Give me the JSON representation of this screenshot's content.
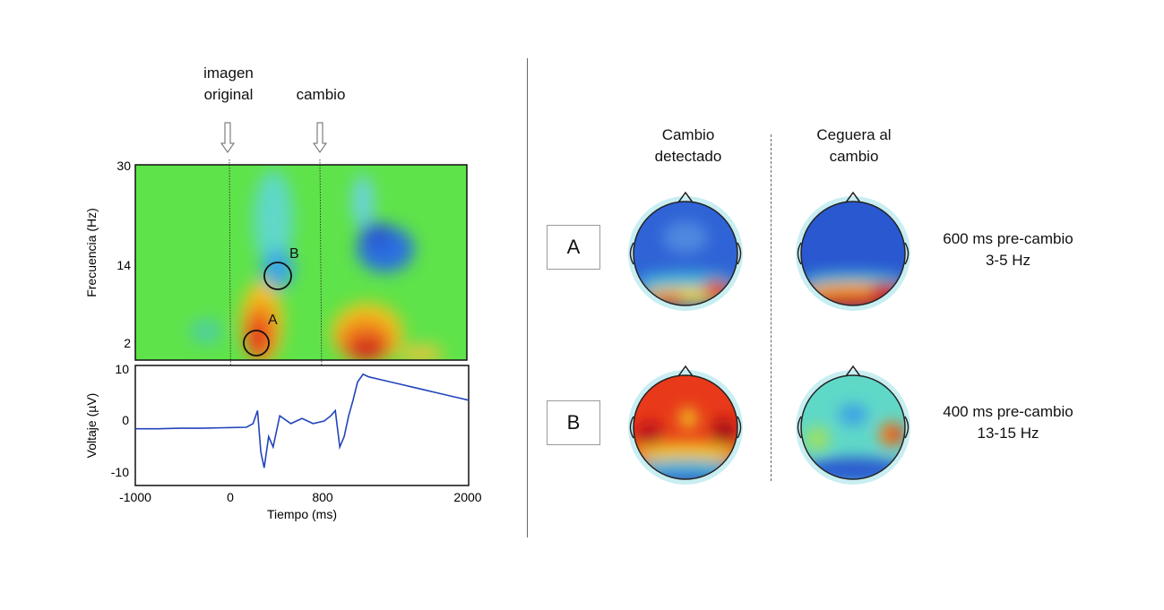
{
  "annotations": {
    "original_image": [
      "imagen",
      "original"
    ],
    "change": "cambio"
  },
  "spectrogram": {
    "ylabel": "Frecuencia (Hz)",
    "yticks": [
      "30",
      "14",
      "2"
    ],
    "markers": [
      "A",
      "B"
    ]
  },
  "erp": {
    "ylabel": "Voltaje (µV)",
    "yticks": [
      "10",
      "0",
      "-10"
    ]
  },
  "time_axis": {
    "xlabel": "Tiempo (ms)",
    "xticks": [
      "-1000",
      "0",
      "800",
      "2000"
    ]
  },
  "topo": {
    "columns": [
      [
        "Cambio",
        "detectado"
      ],
      [
        "Ceguera al",
        "cambio"
      ]
    ],
    "rows": [
      {
        "label": "A",
        "desc": [
          "600 ms pre-cambio",
          "3-5 Hz"
        ]
      },
      {
        "label": "B",
        "desc": [
          "400 ms pre-cambio",
          "13-15 Hz"
        ]
      }
    ]
  },
  "chart_data": {
    "type": "line",
    "x": [
      -1000,
      -800,
      -600,
      -400,
      -200,
      0,
      60,
      100,
      130,
      160,
      200,
      240,
      300,
      400,
      500,
      600,
      700,
      760,
      800,
      840,
      880,
      920,
      960,
      1000,
      1050,
      1100,
      1200,
      1300,
      1400,
      1500,
      1600,
      1700,
      1800,
      1900,
      2000
    ],
    "series": [
      {
        "values": [
          -1.5,
          -1.5,
          -1.4,
          -1.4,
          -1.3,
          -1.2,
          -0.5,
          2.0,
          -6.0,
          -9.0,
          -3.0,
          -5.0,
          1.0,
          -0.5,
          0.5,
          -0.5,
          0.0,
          1.0,
          2.0,
          -5.0,
          -3.0,
          1.0,
          4.0,
          7.5,
          9.0,
          8.5,
          8.0,
          7.5,
          7.0,
          6.5,
          6.0,
          5.5,
          5.0,
          4.5,
          4.0
        ]
      }
    ],
    "xlim": [
      -1000,
      2000
    ],
    "ylim": [
      -12,
      11
    ]
  }
}
